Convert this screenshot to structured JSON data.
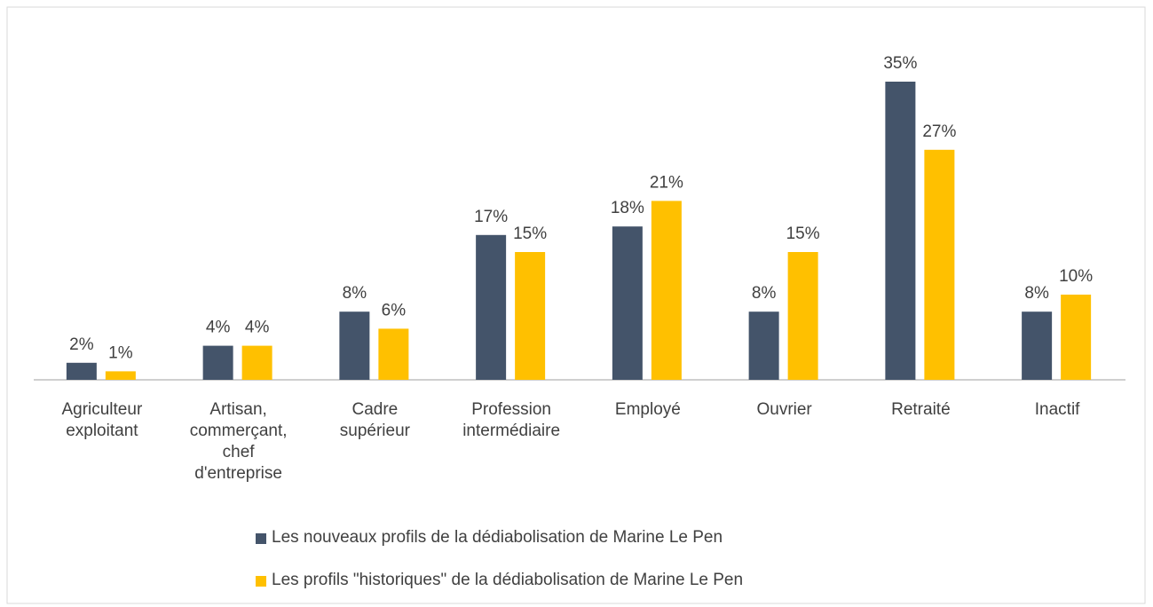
{
  "chart_data": {
    "type": "bar",
    "categories": [
      "Agriculteur exploitant",
      "Artisan, commerçant, chef d'entreprise",
      "Cadre supérieur",
      "Profession intermédiaire",
      "Employé",
      "Ouvrier",
      "Retraité",
      "Inactif"
    ],
    "series": [
      {
        "name": "Les nouveaux profils de la dédiabolisation de Marine Le Pen",
        "color": "#44546a",
        "values": [
          2,
          4,
          8,
          17,
          18,
          8,
          35,
          8
        ],
        "value_labels": [
          "2%",
          "4%",
          "8%",
          "17%",
          "18%",
          "8%",
          "35%",
          "8%"
        ]
      },
      {
        "name": "Les profils \"historiques\" de la dédiabolisation de Marine Le Pen",
        "color": "#ffc000",
        "values": [
          1,
          4,
          6,
          15,
          21,
          15,
          27,
          10
        ],
        "value_labels": [
          "1%",
          "4%",
          "6%",
          "15%",
          "21%",
          "15%",
          "27%",
          "10%"
        ]
      }
    ]
  }
}
